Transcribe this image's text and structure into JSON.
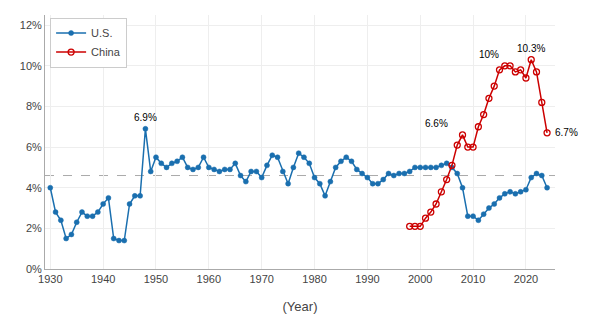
{
  "chart_data": {
    "type": "line",
    "x": [
      1930,
      1931,
      1932,
      1933,
      1934,
      1935,
      1936,
      1937,
      1938,
      1939,
      1940,
      1941,
      1942,
      1943,
      1944,
      1945,
      1946,
      1947,
      1948,
      1949,
      1950,
      1951,
      1952,
      1953,
      1954,
      1955,
      1956,
      1957,
      1958,
      1959,
      1960,
      1961,
      1962,
      1963,
      1964,
      1965,
      1966,
      1967,
      1968,
      1969,
      1970,
      1971,
      1972,
      1973,
      1974,
      1975,
      1976,
      1977,
      1978,
      1979,
      1980,
      1981,
      1982,
      1983,
      1984,
      1985,
      1986,
      1987,
      1988,
      1989,
      1990,
      1991,
      1992,
      1993,
      1994,
      1995,
      1996,
      1997,
      1998,
      1999,
      2000,
      2001,
      2002,
      2003,
      2004,
      2005,
      2006,
      2007,
      2008,
      2009,
      2010,
      2011,
      2012,
      2013,
      2014,
      2015,
      2016,
      2017,
      2018,
      2019,
      2020,
      2021,
      2022,
      2023,
      2024
    ],
    "series": [
      {
        "name": "U.S.",
        "color": "#1a6faf",
        "marker": "circle",
        "values": [
          4.0,
          2.8,
          2.4,
          1.5,
          1.7,
          2.3,
          2.8,
          2.6,
          2.6,
          2.8,
          3.2,
          3.5,
          1.5,
          1.4,
          1.4,
          3.2,
          3.6,
          3.6,
          6.9,
          4.8,
          5.5,
          5.2,
          5.0,
          5.2,
          5.3,
          5.5,
          5.0,
          4.9,
          5.0,
          5.5,
          5.0,
          4.9,
          4.8,
          4.9,
          4.9,
          5.2,
          4.6,
          4.3,
          4.8,
          4.8,
          4.5,
          5.1,
          5.6,
          5.5,
          4.8,
          4.2,
          5.0,
          5.7,
          5.5,
          5.2,
          4.5,
          4.2,
          3.6,
          4.3,
          5.0,
          5.3,
          5.5,
          5.3,
          4.9,
          4.7,
          4.5,
          4.2,
          4.2,
          4.4,
          4.7,
          4.6,
          4.7,
          4.7,
          4.8,
          5.0,
          5.0,
          5.0,
          5.0,
          5.0,
          5.1,
          5.2,
          5.0,
          4.7,
          4.0,
          2.6,
          2.6,
          2.4,
          2.7,
          3.0,
          3.2,
          3.5,
          3.7,
          3.8,
          3.7,
          3.8,
          3.9,
          4.5,
          4.7,
          4.6,
          4.0
        ]
      },
      {
        "name": "China",
        "color": "#cc0000",
        "marker": "circle-open",
        "values": [
          null,
          null,
          null,
          null,
          null,
          null,
          null,
          null,
          null,
          null,
          null,
          null,
          null,
          null,
          null,
          null,
          null,
          null,
          null,
          null,
          null,
          null,
          null,
          null,
          null,
          null,
          null,
          null,
          null,
          null,
          null,
          null,
          null,
          null,
          null,
          null,
          null,
          null,
          null,
          null,
          null,
          null,
          null,
          null,
          null,
          null,
          null,
          null,
          null,
          null,
          null,
          null,
          null,
          null,
          null,
          null,
          null,
          null,
          null,
          null,
          null,
          null,
          null,
          null,
          null,
          null,
          null,
          null,
          2.1,
          2.1,
          2.1,
          2.5,
          2.8,
          3.2,
          3.8,
          4.4,
          5.1,
          6.1,
          6.6,
          6.0,
          6.0,
          7.0,
          7.6,
          8.4,
          9.0,
          9.8,
          10.0,
          10.0,
          9.7,
          9.8,
          9.4,
          10.3,
          9.7,
          8.2,
          6.7
        ]
      }
    ],
    "reference_line": 4.6,
    "annotations": [
      {
        "x": 1948,
        "y": 6.9,
        "text": "6.9%"
      },
      {
        "x": 2003,
        "y": 6.6,
        "text": "6.6%"
      },
      {
        "x": 2013,
        "y": 10.0,
        "text": "10%"
      },
      {
        "x": 2021,
        "y": 10.3,
        "text": "10.3%"
      },
      {
        "x": 2024,
        "y": 6.7,
        "text": "6.7%"
      }
    ],
    "xlabel": "(Year)",
    "xlim": [
      1929,
      2025.5
    ],
    "ylim": [
      0,
      12.5
    ],
    "xticks": [
      1930,
      1940,
      1950,
      1960,
      1970,
      1980,
      1990,
      2000,
      2010,
      2020
    ],
    "yticks": [
      {
        "value": 0,
        "label": "0%"
      },
      {
        "value": 2,
        "label": "2%"
      },
      {
        "value": 4,
        "label": "4%"
      },
      {
        "value": 6,
        "label": "6%"
      },
      {
        "value": 8,
        "label": "8%"
      },
      {
        "value": 10,
        "label": "10%"
      },
      {
        "value": 12,
        "label": "12%"
      }
    ],
    "grid": true,
    "legend": "upper left"
  }
}
